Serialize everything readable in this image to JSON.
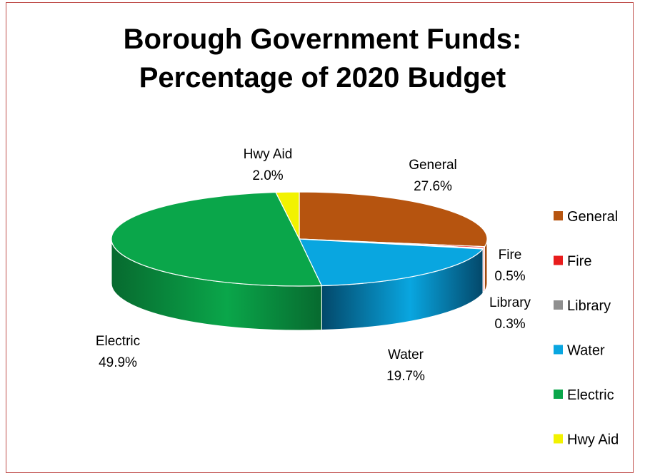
{
  "chart_data": {
    "type": "pie",
    "title_line1": "Borough Government Funds:",
    "title_line2": "Percentage of 2020 Budget",
    "slices": [
      {
        "name": "General",
        "value": 27.6,
        "label": "27.6%",
        "color": "#b6540f",
        "side": "#7d3a0a"
      },
      {
        "name": "Fire",
        "value": 0.5,
        "label": "0.5%",
        "color": "#e81c1c",
        "side": "#a21010"
      },
      {
        "name": "Library",
        "value": 0.3,
        "label": "0.3%",
        "color": "#8f8f8f",
        "side": "#5e5e5e"
      },
      {
        "name": "Water",
        "value": 19.7,
        "label": "19.7%",
        "color": "#09a6e0",
        "side": "#03486a"
      },
      {
        "name": "Electric",
        "value": 49.9,
        "label": "49.9%",
        "color": "#0aa64a",
        "side": "#076a2f"
      },
      {
        "name": "Hwy Aid",
        "value": 2.0,
        "label": "2.0%",
        "color": "#f2f200",
        "side": "#a8a800"
      }
    ],
    "legend_position": "right",
    "border_color": "#c0504d"
  }
}
